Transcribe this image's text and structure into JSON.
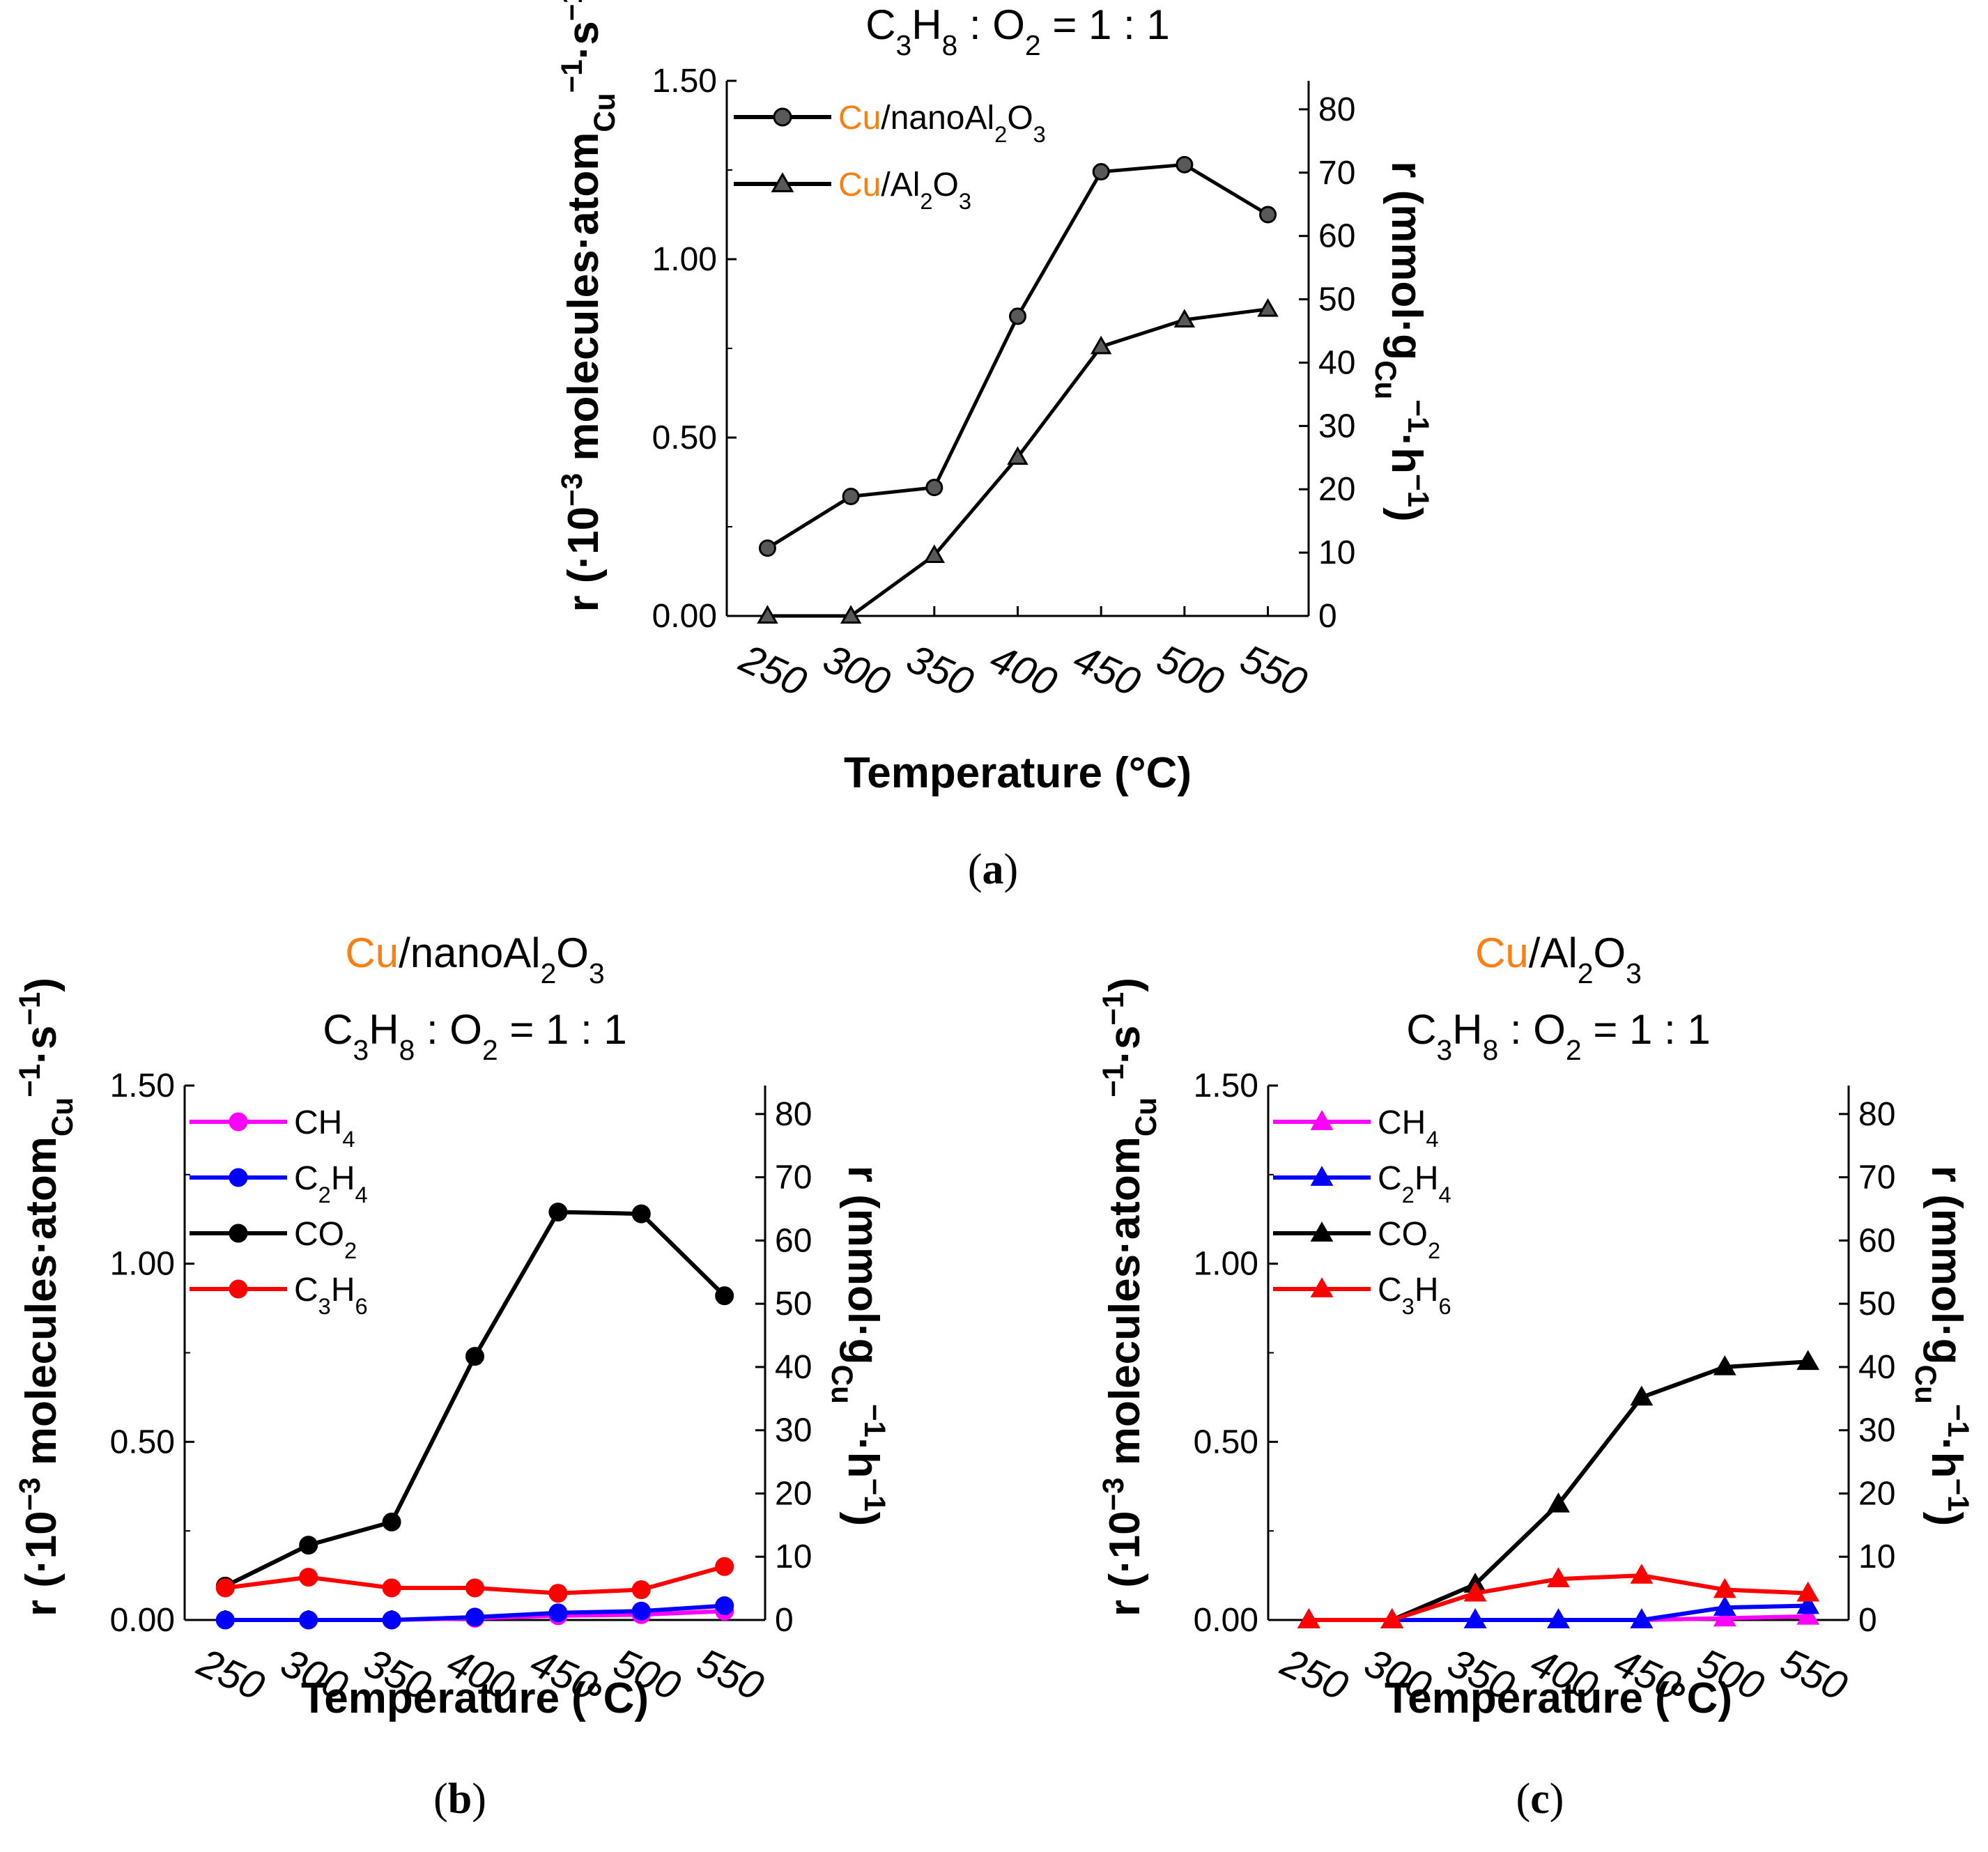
{
  "colors": {
    "accent": "#ff7f0e",
    "black": "#000000",
    "marker_gray": "#595959",
    "ch4": "#ff00ff",
    "c2h4": "#0000ff",
    "co2": "#000000",
    "c3h6": "#ff0000"
  },
  "chart_data": [
    {
      "panel": "(a)",
      "panel_letter": "a",
      "type": "line",
      "title": "C3H8 : O2 = 1 : 1",
      "xlabel": "Temperature (°C)",
      "ylabel": "r (·10−3 molecules·atomCu−1·s−1)",
      "y2label": "r (mmol·gCu−1·h−1)",
      "categories": [
        250,
        300,
        350,
        400,
        450,
        500,
        550
      ],
      "ylim": [
        0,
        1.5
      ],
      "yticks": [
        "0.00",
        "0.50",
        "1.00",
        "1.50"
      ],
      "y2lim": [
        0,
        84.5
      ],
      "y2ticks": [
        0,
        10,
        20,
        30,
        40,
        50,
        60,
        70,
        80
      ],
      "legend_position": "top-left",
      "series": [
        {
          "name": "Cu/nanoAl2O3",
          "name_prefix": "Cu",
          "name_rest": "/nanoAl2O3",
          "marker": "circle",
          "color": "#000000",
          "marker_fill": "#595959",
          "values": [
            0.19,
            0.335,
            0.36,
            0.84,
            1.245,
            1.265,
            1.125
          ]
        },
        {
          "name": "Cu/Al2O3",
          "name_prefix": "Cu",
          "name_rest": "/Al2O3",
          "marker": "triangle",
          "color": "#000000",
          "marker_fill": "#595959",
          "values": [
            0.0,
            0.0,
            0.17,
            0.445,
            0.755,
            0.83,
            0.86
          ]
        }
      ]
    },
    {
      "panel": "(b)",
      "panel_letter": "b",
      "type": "line",
      "title_line1": "Cu/nanoAl2O3",
      "title_prefix": "Cu",
      "title_rest": "/nanoAl2O3",
      "title": "C3H8 : O2 = 1 : 1",
      "xlabel": "Temperature (°C)",
      "ylabel": "r (·10−3 molecules·atomCu−1·s−1)",
      "y2label": "r (mmol·gCu−1·h−1)",
      "categories": [
        250,
        300,
        350,
        400,
        450,
        500,
        550
      ],
      "ylim": [
        0,
        1.5
      ],
      "yticks": [
        "0.00",
        "0.50",
        "1.00",
        "1.50"
      ],
      "y2lim": [
        0,
        84.5
      ],
      "y2ticks": [
        0,
        10,
        20,
        30,
        40,
        50,
        60,
        70,
        80
      ],
      "legend_position": "top-left",
      "series": [
        {
          "name": "CH4",
          "marker": "circle",
          "color": "#ff00ff",
          "values": [
            0.0,
            0.0,
            0.0,
            0.005,
            0.012,
            0.015,
            0.025
          ]
        },
        {
          "name": "C2H4",
          "marker": "circle",
          "color": "#0000ff",
          "values": [
            0.0,
            0.0,
            0.0,
            0.008,
            0.02,
            0.025,
            0.04
          ]
        },
        {
          "name": "CO2",
          "marker": "circle",
          "color": "#000000",
          "values": [
            0.095,
            0.21,
            0.275,
            0.74,
            1.145,
            1.14,
            0.91
          ]
        },
        {
          "name": "C3H6",
          "marker": "circle",
          "color": "#ff0000",
          "values": [
            0.09,
            0.12,
            0.09,
            0.09,
            0.075,
            0.085,
            0.15
          ]
        }
      ]
    },
    {
      "panel": "(c)",
      "panel_letter": "c",
      "type": "line",
      "title_line1": "Cu/Al2O3",
      "title_prefix": "Cu",
      "title_rest": "/Al2O3",
      "title": "C3H8 : O2 = 1 : 1",
      "xlabel": "Temperature (°C)",
      "ylabel": "r (·10−3 molecules·atomCu−1·s−1)",
      "y2label": "r (mmol·gCu−1·h−1)",
      "categories": [
        250,
        300,
        350,
        400,
        450,
        500,
        550
      ],
      "ylim": [
        0,
        1.5
      ],
      "yticks": [
        "0.00",
        "0.50",
        "1.00",
        "1.50"
      ],
      "y2lim": [
        0,
        84.5
      ],
      "y2ticks": [
        0,
        10,
        20,
        30,
        40,
        50,
        60,
        70,
        80
      ],
      "legend_position": "top-left",
      "series": [
        {
          "name": "CH4",
          "marker": "triangle",
          "color": "#ff00ff",
          "values": [
            0.0,
            0.0,
            0.0,
            0.0,
            0.0,
            0.005,
            0.01
          ]
        },
        {
          "name": "C2H4",
          "marker": "triangle",
          "color": "#0000ff",
          "values": [
            0.0,
            0.0,
            0.0,
            0.0,
            0.0,
            0.035,
            0.04
          ]
        },
        {
          "name": "CO2",
          "marker": "triangle",
          "color": "#000000",
          "values": [
            0.0,
            0.0,
            0.1,
            0.325,
            0.625,
            0.71,
            0.725
          ]
        },
        {
          "name": "C3H6",
          "marker": "triangle",
          "color": "#ff0000",
          "values": [
            0.0,
            0.0,
            0.075,
            0.115,
            0.125,
            0.085,
            0.075
          ]
        }
      ]
    }
  ]
}
